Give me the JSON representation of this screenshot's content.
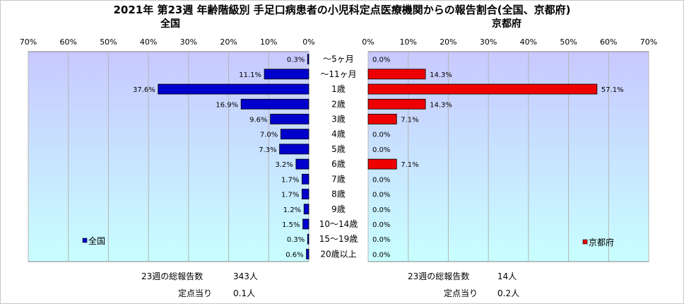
{
  "chart_data": {
    "type": "bar",
    "title": "2021年 第23週 年齢階級別 手足口病患者の小児科定点医療機関からの報告割合(全国、京都府)",
    "categories": [
      "～5ヶ月",
      "～11ヶ月",
      "1歳",
      "2歳",
      "3歳",
      "4歳",
      "5歳",
      "6歳",
      "7歳",
      "8歳",
      "9歳",
      "10～14歳",
      "15～19歳",
      "20歳以上"
    ],
    "ticks": [
      "70%",
      "60%",
      "50%",
      "40%",
      "30%",
      "20%",
      "10%",
      "0%"
    ],
    "ticks_right": [
      "0%",
      "10%",
      "20%",
      "30%",
      "40%",
      "50%",
      "60%",
      "70%"
    ],
    "xlim": [
      0,
      70
    ],
    "orientation": "horizontal",
    "grid": true,
    "series": [
      {
        "name": "全国",
        "panel_title": "全国",
        "side": "left",
        "color": "#0000cc",
        "values": [
          0.3,
          11.1,
          37.6,
          16.9,
          9.6,
          7.0,
          7.3,
          3.2,
          1.7,
          1.7,
          1.2,
          1.5,
          0.3,
          0.6
        ],
        "labels": [
          "0.3%",
          "11.1%",
          "37.6%",
          "16.9%",
          "9.6%",
          "7.0%",
          "7.3%",
          "3.2%",
          "1.7%",
          "1.7%",
          "1.2%",
          "1.5%",
          "0.3%",
          "0.6%"
        ],
        "legend": "全国",
        "legend_position": "bottom-left"
      },
      {
        "name": "京都府",
        "panel_title": "京都府",
        "side": "right",
        "color": "#ee0000",
        "values": [
          0.0,
          14.3,
          57.1,
          14.3,
          7.1,
          0.0,
          0.0,
          7.1,
          0.0,
          0.0,
          0.0,
          0.0,
          0.0,
          0.0
        ],
        "labels": [
          "0.0%",
          "14.3%",
          "57.1%",
          "14.3%",
          "7.1%",
          "0.0%",
          "0.0%",
          "7.1%",
          "0.0%",
          "0.0%",
          "0.0%",
          "0.0%",
          "0.0%",
          "0.0%"
        ],
        "legend": "京都府",
        "legend_position": "bottom-right"
      }
    ],
    "panel_color_top": "#c8c8ff",
    "panel_color_bottom": "#c8ffff"
  },
  "footer": {
    "national_total_label": "23週の総報告数",
    "national_total_value": "343人",
    "national_rate_label": "定点当り",
    "national_rate_value": "0.1人",
    "kyoto_total_label": "23週の総報告数",
    "kyoto_total_value": "14人",
    "kyoto_rate_label": "定点当り",
    "kyoto_rate_value": "0.2人"
  }
}
